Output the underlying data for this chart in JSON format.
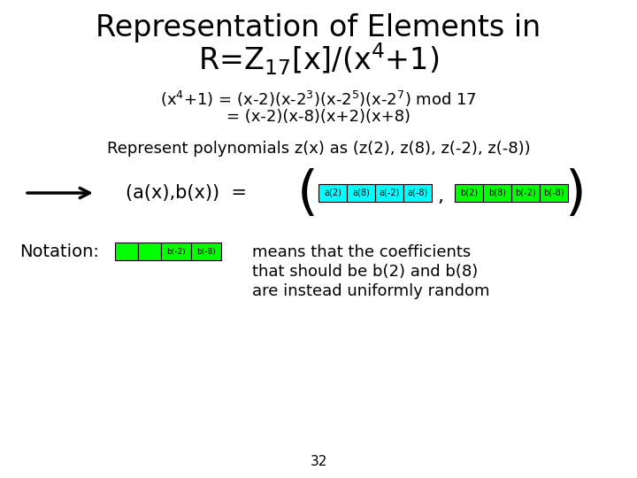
{
  "title_line1": "Representation of Elements in",
  "title_line2": "R=Z$_{17}$[x]/(x$^4$+1)",
  "eq_line1": "(x$^4$+1) = (x-2)(x-2$^3$)(x-2$^5$)(x-2$^7$) mod 17",
  "eq_line2": "= (x-2)(x-8)(x+2)(x+8)",
  "represent_line": "Represent polynomials z(x) as (z(2), z(8), z(-2), z(-8))",
  "arrow_label": "(a(x),b(x))  =",
  "a_labels": [
    "a(2)",
    "a(8)",
    "a(-2)",
    "a(-8)"
  ],
  "b_labels": [
    "b(2)",
    "b(8)",
    "b(-2)",
    "b(-8)"
  ],
  "cyan_color": "#00FFFF",
  "green_color": "#00FF00",
  "notation_label": "Notation:",
  "notation_line1": "means that the coefficients",
  "notation_line2": "that should be b(2) and b(8)",
  "notation_line3": "are instead uniformly random",
  "page_num": "32",
  "bg_color": "#FFFFFF",
  "text_color": "#000000",
  "title_fontsize": 24,
  "eq_fontsize": 13,
  "body_fontsize": 13,
  "arrow_fontsize": 15,
  "small_fontsize": 7,
  "paren_fontsize": 44,
  "nota_fontsize": 14,
  "page_fontsize": 11
}
